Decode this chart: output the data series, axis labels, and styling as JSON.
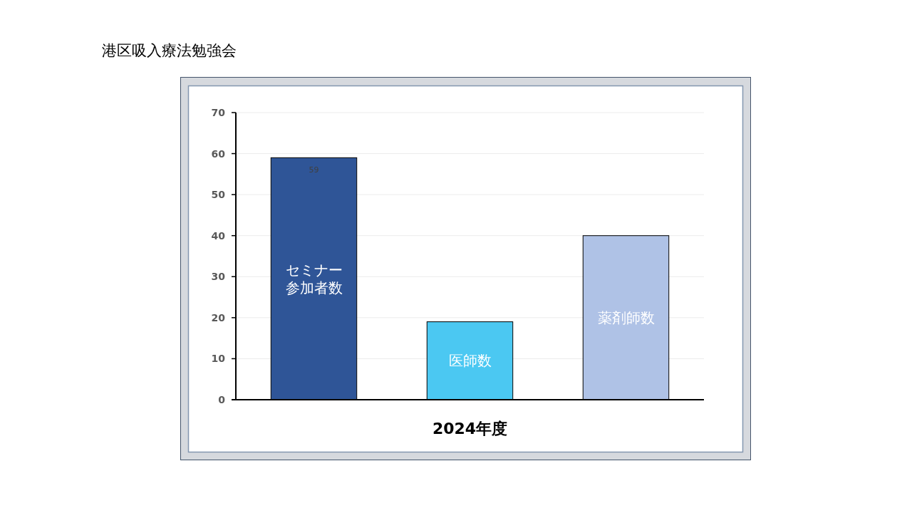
{
  "chart_data": {
    "type": "bar",
    "title": "港区吸入療法勉強会",
    "categories": [
      "2024年度"
    ],
    "series": [
      {
        "name": "セミナー参加者数",
        "color": "#2f5597",
        "values": [
          59
        ],
        "value_labels": [
          "59"
        ]
      },
      {
        "name": "医師数",
        "color": "#4bc8f2",
        "values": [
          19
        ]
      },
      {
        "name": "薬剤師数",
        "color": "#afc2e6",
        "values": [
          40
        ]
      }
    ],
    "ylim": [
      0,
      70
    ],
    "yticks": [
      0,
      10,
      20,
      30,
      40,
      50,
      60,
      70
    ],
    "grid": "y"
  }
}
